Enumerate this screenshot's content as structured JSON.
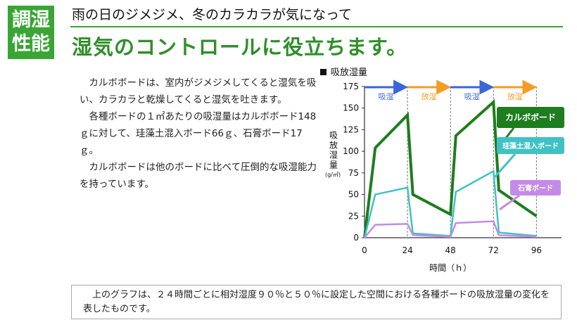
{
  "badge": {
    "line1": "調湿",
    "line2": "性能"
  },
  "subtitle": "雨の日のジメジメ、冬のカラカラが気になって",
  "headline": "湿気のコントロールに役立ちます。",
  "body": {
    "p1": "カルボボードは、室内がジメジメしてくると湿気を吸い、カラカラと乾燥してくると湿気を吐きます。",
    "p2": "各種ボードの１㎡あたりの吸湿量はカルボボード148ｇに対して、珪藻土混入ボード66ｇ、石膏ボード17ｇ。",
    "p3": "カルボボードは他のボードに比べて圧倒的な吸湿能力を持っています。"
  },
  "chart_title": "吸放湿量",
  "caption": "上のグラフは、２４時間ごとに相対湿度９０％と５０％に設定した空間における各種ボードの吸放湿量の変化を表したものです。",
  "chart_data": {
    "type": "line",
    "ylabel": "吸放湿量",
    "yunit": "(g/㎡)",
    "xlabel": "時間（ｈ）",
    "xlim": [
      0,
      110
    ],
    "ylim": [
      0,
      175
    ],
    "xticks": [
      "0",
      "24",
      "48",
      "72",
      "96"
    ],
    "xtick_values": [
      0,
      24,
      48,
      72,
      96
    ],
    "yticks": [
      "0",
      "25",
      "50",
      "75",
      "100",
      "125",
      "150",
      "175"
    ],
    "ytick_values": [
      0,
      25,
      50,
      75,
      100,
      125,
      150,
      175
    ],
    "phases": [
      {
        "label": "吸湿",
        "from": 0,
        "to": 24,
        "color": "#3a66d6"
      },
      {
        "label": "放湿",
        "from": 24,
        "to": 48,
        "color": "#f39c26"
      },
      {
        "label": "吸湿",
        "from": 48,
        "to": 72,
        "color": "#3a66d6"
      },
      {
        "label": "放湿",
        "from": 72,
        "to": 96,
        "color": "#f39c26"
      }
    ],
    "series": [
      {
        "name": "カルボボード",
        "color": "#1e7d1e",
        "x": [
          0,
          6,
          24,
          27,
          48,
          51,
          72,
          75,
          96
        ],
        "y": [
          0,
          104,
          142,
          50,
          27,
          118,
          157,
          55,
          25
        ]
      },
      {
        "name": "珪藻土混入ボード",
        "color": "#40c2c4",
        "x": [
          0,
          6,
          24,
          27,
          48,
          51,
          72,
          75,
          96
        ],
        "y": [
          0,
          50,
          58,
          5,
          2,
          53,
          77,
          6,
          2
        ]
      },
      {
        "name": "石膏ボード",
        "color": "#c48ae8",
        "x": [
          0,
          6,
          24,
          27,
          48,
          51,
          72,
          75,
          96
        ],
        "y": [
          0,
          15,
          16,
          3,
          1,
          17,
          19,
          3,
          1
        ]
      }
    ]
  }
}
